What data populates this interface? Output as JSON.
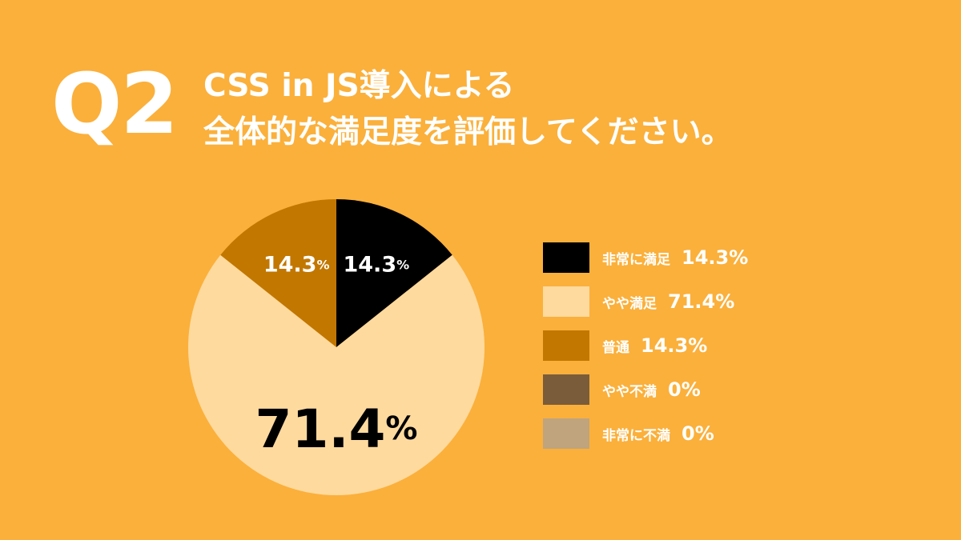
{
  "question_label": "Q2",
  "title_lines": [
    "CSS in JS導入による",
    "全体的な満足度を評価してください。"
  ],
  "chart_data": {
    "type": "pie",
    "title": "CSS in JS導入による全体的な満足度を評価してください。",
    "legend_position": "right",
    "percent_sign": "%",
    "categories": [
      "非常に満足",
      "やや満足",
      "普通",
      "やや不満",
      "非常に不満"
    ],
    "values": [
      14.3,
      71.4,
      14.3,
      0,
      0
    ],
    "colors": [
      "#000000",
      "#FFDA9E",
      "#C27700",
      "#7A5C3B",
      "#BFA47E"
    ],
    "slice_labels": [
      "14.3",
      "71.4",
      "14.3",
      "",
      ""
    ],
    "legend_values": [
      "14.3%",
      "71.4%",
      "14.3%",
      "0%",
      "0%"
    ]
  }
}
